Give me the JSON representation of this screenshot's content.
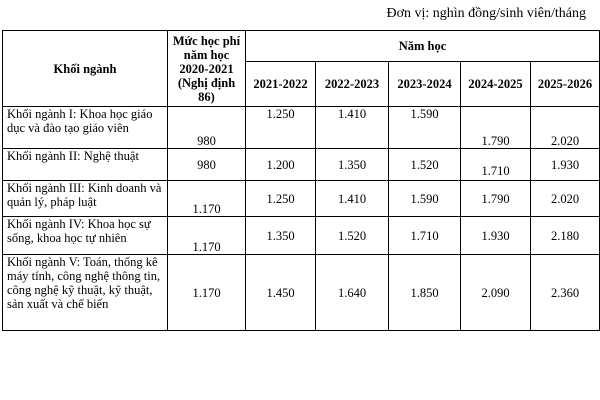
{
  "unit_label": "Đơn vị: nghìn đồng/sinh viên/tháng",
  "headers": {
    "sector": "Khối ngành",
    "base_fee": "Mức học phí năm học 2020-2021 (Nghị định 86)",
    "group": "Năm học",
    "years": [
      "2021-2022",
      "2022-2023",
      "2023-2024",
      "2024-2025",
      "2025-2026"
    ]
  },
  "rows": [
    {
      "sector": "Khối ngành I: Khoa học giáo dục và đào tạo giáo viên",
      "base": "980",
      "values": [
        "1.250",
        "1.410",
        "1.590",
        "1.790",
        "2.020"
      ]
    },
    {
      "sector": "Khối ngành II: Nghệ thuật",
      "base": "980",
      "values": [
        "1.200",
        "1.350",
        "1.520",
        "1.710",
        "1.930"
      ]
    },
    {
      "sector": "Khối ngành III: Kinh doanh và quản lý, pháp luật",
      "base": "1.170",
      "values": [
        "1.250",
        "1.410",
        "1.590",
        "1.790",
        "2.020"
      ]
    },
    {
      "sector": "Khối ngành IV: Khoa học sự sống, khoa học tự nhiên",
      "base": "1.170",
      "values": [
        "1.350",
        "1.520",
        "1.710",
        "1.930",
        "2.180"
      ]
    },
    {
      "sector": "Khối ngành V: Toán, thống kê máy tính, công nghệ thông tin, công nghệ kỹ thuật, kỹ thuật, sản xuất và chế biến",
      "base": "1.170",
      "values": [
        "1.450",
        "1.640",
        "1.850",
        "2.090",
        "2.360"
      ]
    }
  ]
}
